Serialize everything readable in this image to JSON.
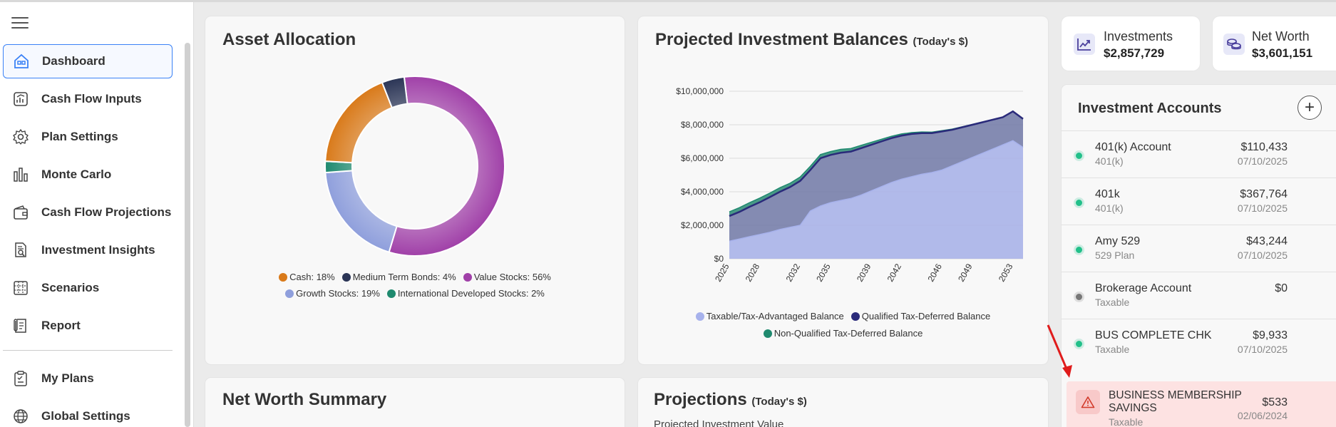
{
  "nav": {
    "items": [
      {
        "label": "Dashboard",
        "icon": "home-icon",
        "active": true
      },
      {
        "label": "Cash Flow Inputs",
        "icon": "chart-trend-icon"
      },
      {
        "label": "Plan Settings",
        "icon": "gear-icon"
      },
      {
        "label": "Monte Carlo",
        "icon": "bar-chart-icon"
      },
      {
        "label": "Cash Flow Projections",
        "icon": "wallet-icon"
      },
      {
        "label": "Investment Insights",
        "icon": "document-search-icon"
      },
      {
        "label": "Scenarios",
        "icon": "scenarios-icon"
      },
      {
        "label": "Report",
        "icon": "report-icon"
      }
    ],
    "secondary": [
      {
        "label": "My Plans",
        "icon": "clipboard-icon"
      },
      {
        "label": "Global Settings",
        "icon": "globe-icon"
      }
    ]
  },
  "asset_allocation": {
    "title": "Asset Allocation",
    "legend": [
      {
        "label": "Cash: 18%",
        "color": "#d97a1a"
      },
      {
        "label": "Medium Term Bonds: 4%",
        "color": "#2b3556"
      },
      {
        "label": "Value Stocks: 56%",
        "color": "#a040a8"
      },
      {
        "label": "Growth Stocks: 19%",
        "color": "#8f9fdc"
      },
      {
        "label": "International Developed Stocks: 2%",
        "color": "#1f8a6f"
      }
    ]
  },
  "projected_balances": {
    "title": "Projected Investment Balances",
    "subtitle": "(Today's $)",
    "legend": [
      {
        "label": "Taxable/Tax-Advantaged Balance",
        "color": "#a7b2ec"
      },
      {
        "label": "Qualified Tax-Deferred Balance",
        "color": "#2a2a7a"
      },
      {
        "label": "Non-Qualified Tax-Deferred Balance",
        "color": "#1f8a6f"
      }
    ]
  },
  "net_worth_summary": {
    "title": "Net Worth Summary"
  },
  "projections": {
    "title": "Projections",
    "subtitle": "(Today's $)",
    "partial_text": "Projected Investment Value"
  },
  "tiles": [
    {
      "label": "Investments",
      "value": "$2,857,729",
      "icon": "trend-chart-icon"
    },
    {
      "label": "Net Worth",
      "value": "$3,601,151",
      "icon": "coins-icon"
    }
  ],
  "accounts": {
    "title": "Investment Accounts",
    "add_label": "+",
    "rows": [
      {
        "name": "401(k) Account",
        "type": "401(k)",
        "value": "$110,433",
        "date": "07/10/2025",
        "status": "#22c08a"
      },
      {
        "name": "401k",
        "type": "401(k)",
        "value": "$367,764",
        "date": "07/10/2025",
        "status": "#22c08a"
      },
      {
        "name": "Amy 529",
        "type": "529 Plan",
        "value": "$43,244",
        "date": "07/10/2025",
        "status": "#22c08a"
      },
      {
        "name": "Brokerage Account",
        "type": "Taxable",
        "value": "$0",
        "date": "",
        "status": "#777777"
      },
      {
        "name": "BUS COMPLETE CHK",
        "type": "Taxable",
        "value": "$9,933",
        "date": "07/10/2025",
        "status": "#22c08a"
      }
    ],
    "alert_row": {
      "name": "BUSINESS MEMBERSHIP SAVINGS",
      "type": "Taxable",
      "value": "$533",
      "date": "02/06/2024"
    }
  },
  "chart_data": [
    {
      "type": "pie",
      "title": "Asset Allocation",
      "donut": true,
      "categories": [
        "Value Stocks",
        "Growth Stocks",
        "International Developed Stocks",
        "Cash",
        "Medium Term Bonds"
      ],
      "values": [
        56,
        19,
        2,
        18,
        4
      ],
      "colors": [
        "#a040a8",
        "#8f9fdc",
        "#1f8a6f",
        "#d97a1a",
        "#2b3556"
      ]
    },
    {
      "type": "area",
      "title": "Projected Investment Balances",
      "x": [
        2025,
        2026,
        2027,
        2028,
        2029,
        2030,
        2031,
        2032,
        2033,
        2034,
        2035,
        2036,
        2037,
        2038,
        2039,
        2040,
        2041,
        2042,
        2043,
        2044,
        2045,
        2046,
        2047,
        2048,
        2049,
        2050,
        2051,
        2052,
        2053,
        2054
      ],
      "xticks": [
        "2025",
        "2028",
        "2032",
        "2035",
        "2039",
        "2042",
        "2046",
        "2049",
        "2053"
      ],
      "yticks": [
        "$0",
        "$2,000,000",
        "$4,000,000",
        "$6,000,000",
        "$8,000,000",
        "$10,000,000"
      ],
      "ylim": [
        0,
        10000000
      ],
      "series": [
        {
          "name": "Taxable/Tax-Advantaged Balance",
          "color": "#a7b2ec",
          "values": [
            1050000,
            1180000,
            1320000,
            1450000,
            1580000,
            1750000,
            1880000,
            2000000,
            2850000,
            3150000,
            3350000,
            3480000,
            3600000,
            3800000,
            4050000,
            4300000,
            4550000,
            4750000,
            4900000,
            5050000,
            5150000,
            5300000,
            5550000,
            5800000,
            6050000,
            6300000,
            6550000,
            6800000,
            7050000,
            6650000
          ]
        },
        {
          "name": "Qualified Tax-Deferred Balance",
          "color": "#2a2a7a",
          "values": [
            1500000,
            1620000,
            1780000,
            1920000,
            2100000,
            2250000,
            2400000,
            2650000,
            2450000,
            2850000,
            2850000,
            2850000,
            2800000,
            2800000,
            2750000,
            2700000,
            2650000,
            2600000,
            2550000,
            2450000,
            2350000,
            2300000,
            2150000,
            2050000,
            1950000,
            1850000,
            1750000,
            1650000,
            1750000,
            1700000
          ]
        },
        {
          "name": "Non-Qualified Tax-Deferred Balance",
          "color": "#1f8a6f",
          "values": [
            250000,
            250000,
            250000,
            250000,
            240000,
            240000,
            230000,
            230000,
            220000,
            220000,
            200000,
            200000,
            180000,
            170000,
            150000,
            130000,
            110000,
            100000,
            80000,
            70000,
            60000,
            50000,
            40000,
            30000,
            20000,
            15000,
            10000,
            5000,
            0,
            0
          ]
        }
      ]
    }
  ]
}
